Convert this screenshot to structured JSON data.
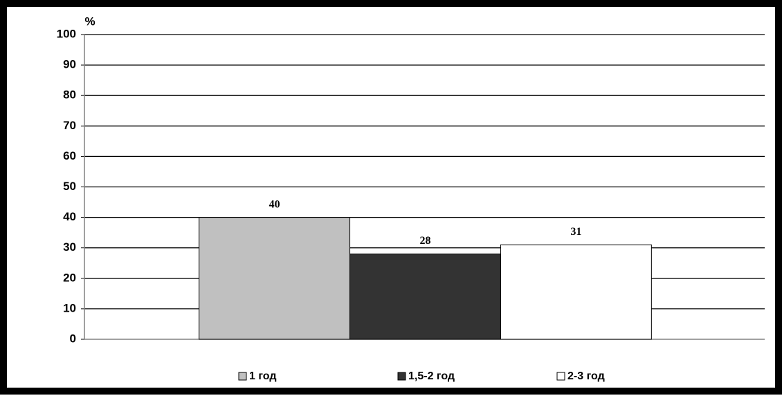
{
  "chart_data": {
    "type": "bar",
    "y_label": "%",
    "categories": [
      null
    ],
    "series": [
      {
        "name": "1 год",
        "color": "#c0c0c0",
        "values": [
          40
        ]
      },
      {
        "name": "1,5-2 год",
        "color": "#333333",
        "values": [
          28
        ]
      },
      {
        "name": "2-3 год",
        "color": "#ffffff",
        "values": [
          31
        ]
      }
    ],
    "ylim": [
      0,
      100
    ],
    "yticks": [
      0,
      10,
      20,
      30,
      40,
      50,
      60,
      70,
      80,
      90,
      100
    ],
    "grid": true,
    "legend": "bottom"
  }
}
